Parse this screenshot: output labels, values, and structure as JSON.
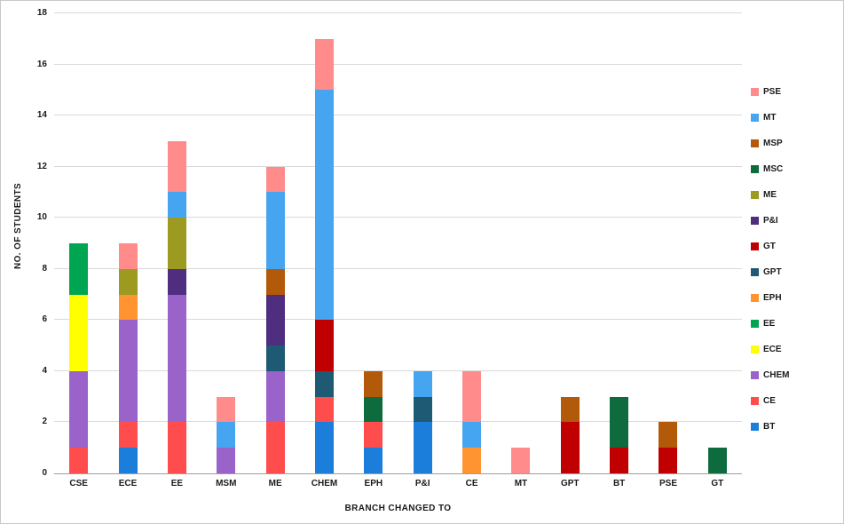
{
  "axes": {
    "x_label": "BRANCH CHANGED TO",
    "y_label": "NO. OF STUDENTS"
  },
  "chart_data": {
    "type": "bar",
    "stacked": true,
    "title": "",
    "xlabel": "BRANCH CHANGED TO",
    "ylabel": "NO. OF STUDENTS",
    "ylim": [
      0,
      18
    ],
    "ytick_step": 2,
    "grid": true,
    "legend_position": "right",
    "categories": [
      "CSE",
      "ECE",
      "EE",
      "MSM",
      "ME",
      "CHEM",
      "EPH",
      "P&I",
      "CE",
      "MT",
      "GPT",
      "BT",
      "PSE",
      "GT"
    ],
    "series": [
      {
        "name": "BT",
        "color": "#1b7edb",
        "values": [
          0,
          1,
          0,
          0,
          0,
          2,
          1,
          2,
          0,
          0,
          0,
          0,
          0,
          0
        ]
      },
      {
        "name": "CE",
        "color": "#ff4d4d",
        "values": [
          1,
          1,
          2,
          0,
          2,
          1,
          1,
          0,
          0,
          0,
          0,
          0,
          0,
          0
        ]
      },
      {
        "name": "CHEM",
        "color": "#9a63c9",
        "values": [
          3,
          4,
          5,
          1,
          2,
          0,
          0,
          0,
          0,
          0,
          0,
          0,
          0,
          0
        ]
      },
      {
        "name": "ECE",
        "color": "#ffff00",
        "values": [
          3,
          0,
          0,
          0,
          0,
          0,
          0,
          0,
          0,
          0,
          0,
          0,
          0,
          0
        ]
      },
      {
        "name": "EE",
        "color": "#00a551",
        "values": [
          2,
          0,
          0,
          0,
          0,
          0,
          0,
          0,
          0,
          0,
          0,
          0,
          0,
          0
        ]
      },
      {
        "name": "EPH",
        "color": "#ff9430",
        "values": [
          0,
          1,
          0,
          0,
          0,
          0,
          0,
          0,
          1,
          0,
          0,
          0,
          0,
          0
        ]
      },
      {
        "name": "GPT",
        "color": "#1f5a74",
        "values": [
          0,
          0,
          0,
          0,
          1,
          1,
          0,
          1,
          0,
          0,
          0,
          0,
          0,
          0
        ]
      },
      {
        "name": "GT",
        "color": "#c00000",
        "values": [
          0,
          0,
          0,
          0,
          0,
          2,
          0,
          0,
          0,
          0,
          2,
          1,
          1,
          0
        ]
      },
      {
        "name": "P&I",
        "color": "#4f2d7f",
        "values": [
          0,
          0,
          1,
          0,
          2,
          0,
          0,
          0,
          0,
          0,
          0,
          0,
          0,
          0
        ]
      },
      {
        "name": "ME",
        "color": "#9c9a20",
        "values": [
          0,
          1,
          2,
          0,
          0,
          0,
          0,
          0,
          0,
          0,
          0,
          0,
          0,
          0
        ]
      },
      {
        "name": "MSC",
        "color": "#0e6b3d",
        "values": [
          0,
          0,
          0,
          0,
          0,
          0,
          1,
          0,
          0,
          0,
          0,
          2,
          0,
          1
        ]
      },
      {
        "name": "MSP",
        "color": "#b25a09",
        "values": [
          0,
          0,
          0,
          0,
          1,
          0,
          1,
          0,
          0,
          0,
          1,
          0,
          1,
          0
        ]
      },
      {
        "name": "MT",
        "color": "#46a5f0",
        "values": [
          0,
          0,
          1,
          1,
          3,
          9,
          0,
          1,
          1,
          0,
          0,
          0,
          0,
          0
        ]
      },
      {
        "name": "PSE",
        "color": "#ff8b8b",
        "values": [
          0,
          1,
          2,
          1,
          1,
          2,
          0,
          0,
          2,
          1,
          0,
          0,
          0,
          0
        ]
      }
    ],
    "legend_order_top_to_bottom": [
      "PSE",
      "MT",
      "MSP",
      "MSC",
      "ME",
      "P&I",
      "GT",
      "GPT",
      "EPH",
      "EE",
      "ECE",
      "CHEM",
      "CE",
      "BT"
    ]
  }
}
